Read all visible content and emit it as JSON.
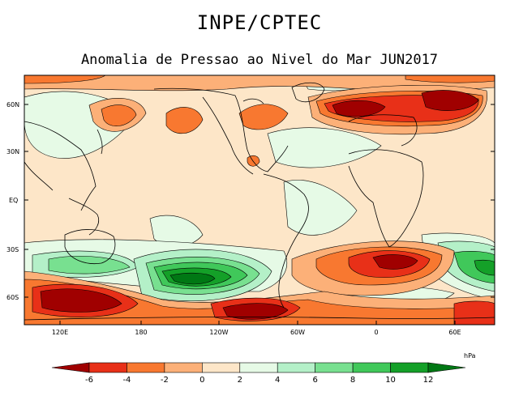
{
  "title": "INPE/CPTEC",
  "subtitle": "Anomalia de Pressao ao Nivel do Mar JUN2017",
  "lat_labels": [
    "60N",
    "30N",
    "EQ",
    "30S",
    "60S"
  ],
  "lon_labels": [
    "120E",
    "180",
    "120W",
    "60W",
    "0",
    "60E"
  ],
  "colorbar": {
    "unit": "hPa",
    "labels": [
      "-6",
      "-4",
      "-2",
      "0",
      "2",
      "4",
      "6",
      "8",
      "10",
      "12"
    ],
    "colors": [
      "#a00000",
      "#e83018",
      "#f87830",
      "#fcb078",
      "#fde6c8",
      "#e6fae6",
      "#b4f0c8",
      "#78e090",
      "#40c85a",
      "#14a028",
      "#007814"
    ]
  },
  "colors": {
    "neutral_negative": "#fde6c8",
    "neutral_positive": "#e6fae6",
    "strong_negative": "#a00000",
    "strong_positive": "#007814"
  }
}
